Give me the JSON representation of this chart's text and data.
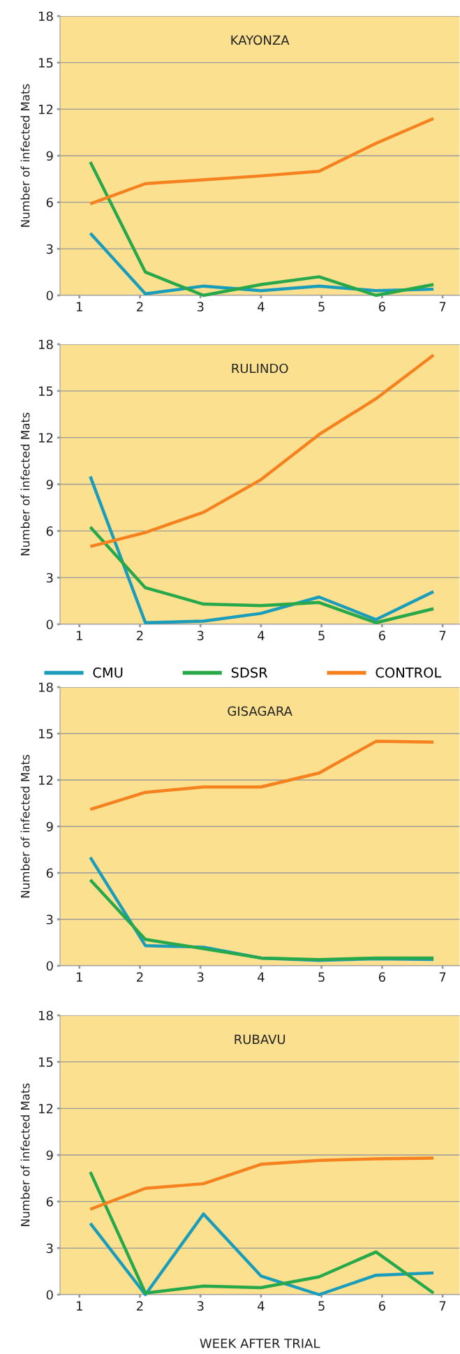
{
  "chart_data": [
    {
      "type": "line",
      "title": "KAYONZA",
      "ylabel": "Number of infected Mats",
      "x": [
        1.18,
        2.09,
        3.05,
        4.0,
        4.96,
        5.9,
        6.85
      ],
      "xlim": [
        0.68,
        7.28
      ],
      "xticks": [
        1,
        2,
        3,
        4,
        5,
        6,
        7
      ],
      "ylim": [
        0,
        18
      ],
      "yticks": [
        0,
        3,
        6,
        9,
        12,
        15,
        18
      ],
      "grid": "y",
      "legend": false,
      "series": [
        {
          "color": "#1a9dba",
          "values": [
            4.0,
            0.1,
            0.6,
            0.3,
            0.6,
            0.3,
            0.4
          ]
        },
        {
          "color": "#27a84a",
          "values": [
            8.6,
            1.5,
            0,
            0.7,
            1.2,
            0,
            0.7
          ]
        },
        {
          "color": "#f5821f",
          "values": [
            5.9,
            7.2,
            7.45,
            7.7,
            8.0,
            9.8,
            11.4
          ]
        }
      ]
    },
    {
      "type": "line",
      "title": "RULINDO",
      "ylabel": "Number of infected Mats",
      "x": [
        1.18,
        2.09,
        3.05,
        4.0,
        4.96,
        5.9,
        6.85
      ],
      "xlim": [
        0.68,
        7.28
      ],
      "xticks": [
        1,
        2,
        3,
        4,
        5,
        6,
        7
      ],
      "ylim": [
        0,
        18
      ],
      "yticks": [
        0,
        3,
        6,
        9,
        12,
        15,
        18
      ],
      "grid": "y",
      "legend": false,
      "series": [
        {
          "color": "#1a9dba",
          "values": [
            9.5,
            0.1,
            0.2,
            0.7,
            1.75,
            0.3,
            2.1
          ]
        },
        {
          "color": "#27a84a",
          "values": [
            6.25,
            2.35,
            1.3,
            1.2,
            1.4,
            0.1,
            1.0
          ]
        },
        {
          "color": "#f5821f",
          "values": [
            5.0,
            5.9,
            7.2,
            9.3,
            12.2,
            14.5,
            17.3
          ]
        }
      ]
    },
    {
      "type": "line",
      "title": "GISAGARA",
      "ylabel": "Number of infected Mats",
      "x": [
        1.18,
        2.09,
        3.05,
        4.0,
        4.96,
        5.9,
        6.85
      ],
      "xlim": [
        0.68,
        7.28
      ],
      "xticks": [
        1,
        2,
        3,
        4,
        5,
        6,
        7
      ],
      "ylim": [
        0,
        18
      ],
      "yticks": [
        0,
        3,
        6,
        9,
        12,
        15,
        18
      ],
      "grid": "y",
      "legend": "top",
      "series": [
        {
          "name": "CMU",
          "color": "#1a9dba",
          "values": [
            7.0,
            1.3,
            1.2,
            0.5,
            0.35,
            0.45,
            0.4
          ]
        },
        {
          "name": "SDSR",
          "color": "#27a84a",
          "values": [
            5.55,
            1.7,
            1.1,
            0.5,
            0.4,
            0.5,
            0.5
          ]
        },
        {
          "name": "CONTROL",
          "color": "#f5821f",
          "values": [
            10.1,
            11.2,
            11.55,
            11.55,
            12.45,
            14.5,
            14.45
          ]
        }
      ]
    },
    {
      "type": "line",
      "title": "RUBAVU",
      "ylabel": "Number of infected Mats",
      "xlabel": "WEEK AFTER TRIAL",
      "x": [
        1.18,
        2.09,
        3.05,
        4.0,
        4.96,
        5.9,
        6.85
      ],
      "xlim": [
        0.68,
        7.28
      ],
      "xticks": [
        1,
        2,
        3,
        4,
        5,
        6,
        7
      ],
      "ylim": [
        0,
        18
      ],
      "yticks": [
        0,
        3,
        6,
        9,
        12,
        15,
        18
      ],
      "grid": "y",
      "legend": false,
      "series": [
        {
          "color": "#1a9dba",
          "values": [
            4.6,
            0,
            5.2,
            1.2,
            0,
            1.25,
            1.4
          ]
        },
        {
          "color": "#27a84a",
          "values": [
            7.9,
            0.1,
            0.55,
            0.45,
            1.15,
            2.75,
            0.1
          ]
        },
        {
          "color": "#f5821f",
          "values": [
            5.5,
            6.85,
            7.15,
            8.4,
            8.65,
            8.75,
            8.8
          ]
        }
      ]
    }
  ]
}
